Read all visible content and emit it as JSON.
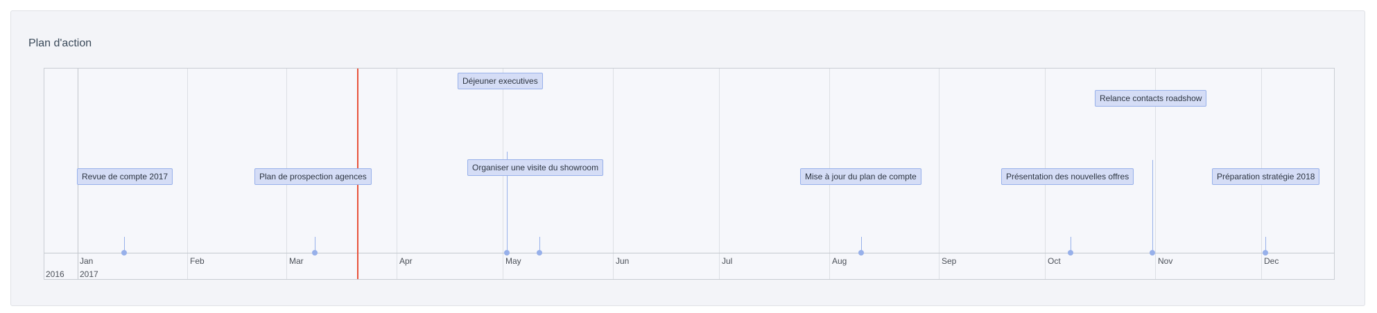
{
  "title": "Plan d'action",
  "colors": {
    "now_line": "#e8513a",
    "event_fill": "#d5ddf6",
    "event_border": "#97b0ea"
  },
  "axis": {
    "months": [
      "Jan",
      "Feb",
      "Mar",
      "Apr",
      "May",
      "Jun",
      "Jul",
      "Aug",
      "Sep",
      "Oct",
      "Nov",
      "Dec"
    ],
    "years": [
      "2016",
      "2017"
    ]
  },
  "events": [
    {
      "label": "Revue de compte 2017"
    },
    {
      "label": "Plan de prospection agences"
    },
    {
      "label": "Déjeuner executives"
    },
    {
      "label": "Organiser une visite du showroom"
    },
    {
      "label": "Mise à jour du plan de compte"
    },
    {
      "label": "Présentation des nouvelles offres"
    },
    {
      "label": "Relance contacts roadshow"
    },
    {
      "label": "Préparation stratégie 2018"
    }
  ]
}
